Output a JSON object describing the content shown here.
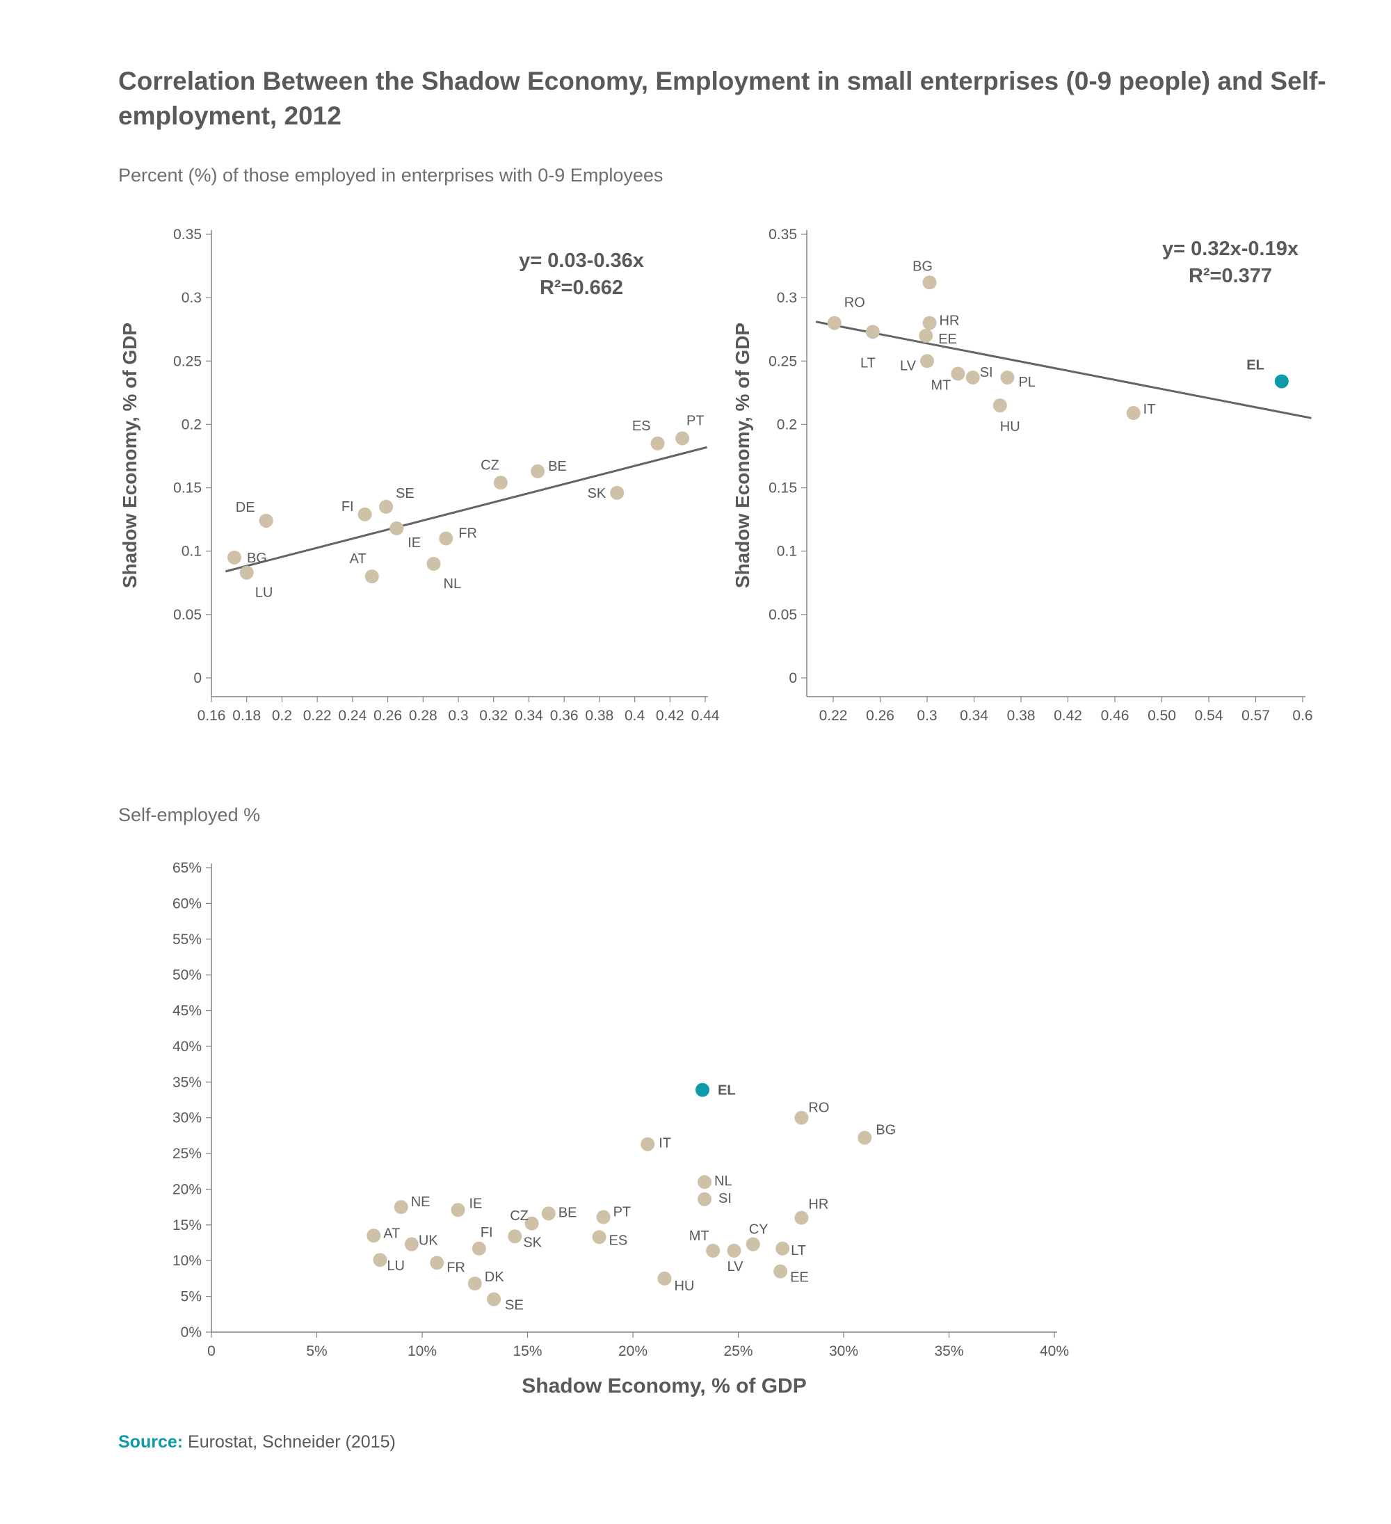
{
  "title": "Correlation Between the Shadow Economy, Employment in small enterprises (0-9 people) and Self-employment, 2012",
  "section1_label": "Percent (%) of those employed in enterprises with 0-9 Employees",
  "section2_label": "Self-employed %",
  "source": {
    "label": "Source:",
    "text": " Eurostat, Schneider (2015)"
  },
  "colors": {
    "point": "#cfc1a7",
    "highlight": "#0e9aa7",
    "axis": "#808285",
    "text": "#58595b",
    "trend": "#636466"
  },
  "chart_data": [
    {
      "type": "scatter",
      "ylabel": "Shadow Economy, % of GDP",
      "xlabel": "",
      "equation": "y= 0.03-0.36x",
      "r2": "R²=0.662",
      "x_ticks": [
        "0.16",
        "0.18",
        "0.2",
        "0.22",
        "0.24",
        "0.26",
        "0.28",
        "0.3",
        "0.32",
        "0.34",
        "0.36",
        "0.38",
        "0.4",
        "0.42",
        "0.44"
      ],
      "y_ticks": [
        "0",
        "0.05",
        "0.1",
        "0.15",
        "0.2",
        "0.25",
        "0.3",
        "0.35"
      ],
      "xlim": [
        0.16,
        0.44
      ],
      "ylim": [
        0,
        0.35
      ],
      "trendline": [
        [
          0.168,
          0.084
        ],
        [
          0.441,
          0.182
        ]
      ],
      "points": [
        {
          "label": "DE",
          "x": 0.191,
          "y": 0.124
        },
        {
          "label": "BG",
          "x": 0.173,
          "y": 0.095
        },
        {
          "label": "LU",
          "x": 0.18,
          "y": 0.083
        },
        {
          "label": "FI",
          "x": 0.247,
          "y": 0.129
        },
        {
          "label": "SE",
          "x": 0.259,
          "y": 0.135
        },
        {
          "label": "IE",
          "x": 0.265,
          "y": 0.118
        },
        {
          "label": "AT",
          "x": 0.251,
          "y": 0.08
        },
        {
          "label": "NL",
          "x": 0.286,
          "y": 0.09
        },
        {
          "label": "FR",
          "x": 0.293,
          "y": 0.11
        },
        {
          "label": "CZ",
          "x": 0.324,
          "y": 0.154
        },
        {
          "label": "BE",
          "x": 0.345,
          "y": 0.163
        },
        {
          "label": "SK",
          "x": 0.39,
          "y": 0.146
        },
        {
          "label": "ES",
          "x": 0.413,
          "y": 0.185
        },
        {
          "label": "PT",
          "x": 0.427,
          "y": 0.189
        }
      ]
    },
    {
      "type": "scatter",
      "ylabel": "Shadow Economy, % of GDP",
      "xlabel": "",
      "equation": "y= 0.32x-0.19x",
      "r2": "R²=0.377",
      "x_ticks": [
        "0.22",
        "0.26",
        "0.3",
        "0.34",
        "0.38",
        "0.42",
        "0.46",
        "0.50",
        "0.54",
        "0.57",
        "0.6"
      ],
      "y_ticks": [
        "0",
        "0.05",
        "0.1",
        "0.15",
        "0.2",
        "0.25",
        "0.3",
        "0.35"
      ],
      "xlim": [
        0.22,
        0.6
      ],
      "ylim": [
        0,
        0.35
      ],
      "trendline": [
        [
          0.206,
          0.281
        ],
        [
          0.607,
          0.205
        ]
      ],
      "points": [
        {
          "label": "RO",
          "x": 0.221,
          "y": 0.28
        },
        {
          "label": "LT",
          "x": 0.252,
          "y": 0.273
        },
        {
          "label": "BG",
          "x": 0.298,
          "y": 0.312
        },
        {
          "label": "HR",
          "x": 0.298,
          "y": 0.28
        },
        {
          "label": "EE",
          "x": 0.295,
          "y": 0.27
        },
        {
          "label": "LV",
          "x": 0.296,
          "y": 0.25
        },
        {
          "label": "MT",
          "x": 0.321,
          "y": 0.24
        },
        {
          "label": "SI",
          "x": 0.333,
          "y": 0.237
        },
        {
          "label": "PL",
          "x": 0.361,
          "y": 0.237
        },
        {
          "label": "HU",
          "x": 0.355,
          "y": 0.215
        },
        {
          "label": "IT",
          "x": 0.463,
          "y": 0.209
        },
        {
          "label": "EL",
          "x": 0.583,
          "y": 0.234,
          "highlight": true
        }
      ]
    },
    {
      "type": "scatter",
      "xlabel": "Shadow Economy, % of GDP",
      "ylabel": "",
      "x_ticks": [
        "0",
        "5%",
        "10%",
        "15%",
        "20%",
        "25%",
        "30%",
        "35%",
        "40%"
      ],
      "y_ticks": [
        "0%",
        "5%",
        "10%",
        "15%",
        "20%",
        "25%",
        "30%",
        "35%",
        "40%",
        "45%",
        "50%",
        "55%",
        "60%",
        "65%"
      ],
      "xlim": [
        0,
        40
      ],
      "ylim": [
        0,
        65
      ],
      "points": [
        {
          "label": "EL",
          "x": 23.3,
          "y": 33.9,
          "highlight": true
        },
        {
          "label": "RO",
          "x": 28.0,
          "y": 30.0
        },
        {
          "label": "BG",
          "x": 31.0,
          "y": 27.2
        },
        {
          "label": "IT",
          "x": 20.7,
          "y": 26.3
        },
        {
          "label": "NL",
          "x": 23.4,
          "y": 21.0
        },
        {
          "label": "SI",
          "x": 23.4,
          "y": 18.6
        },
        {
          "label": "NE",
          "x": 9.0,
          "y": 17.5
        },
        {
          "label": "IE",
          "x": 11.7,
          "y": 17.1
        },
        {
          "label": "CZ",
          "x": 15.2,
          "y": 15.2
        },
        {
          "label": "BE",
          "x": 16.0,
          "y": 16.6
        },
        {
          "label": "PT",
          "x": 18.6,
          "y": 16.1
        },
        {
          "label": "HR",
          "x": 28.0,
          "y": 16.0
        },
        {
          "label": "AT",
          "x": 7.7,
          "y": 13.5
        },
        {
          "label": "UK",
          "x": 9.5,
          "y": 12.3
        },
        {
          "label": "FI",
          "x": 12.7,
          "y": 11.7
        },
        {
          "label": "SK",
          "x": 14.4,
          "y": 13.4
        },
        {
          "label": "ES",
          "x": 18.4,
          "y": 13.3
        },
        {
          "label": "MT",
          "x": 23.8,
          "y": 11.4
        },
        {
          "label": "CY",
          "x": 25.7,
          "y": 12.3
        },
        {
          "label": "LT",
          "x": 27.1,
          "y": 11.7
        },
        {
          "label": "LV",
          "x": 24.8,
          "y": 11.4
        },
        {
          "label": "LU",
          "x": 8.0,
          "y": 10.1
        },
        {
          "label": "FR",
          "x": 10.7,
          "y": 9.7
        },
        {
          "label": "EE",
          "x": 27.0,
          "y": 8.5
        },
        {
          "label": "HU",
          "x": 21.5,
          "y": 7.5
        },
        {
          "label": "DK",
          "x": 12.5,
          "y": 6.8
        },
        {
          "label": "SE",
          "x": 13.4,
          "y": 4.6
        }
      ]
    }
  ]
}
